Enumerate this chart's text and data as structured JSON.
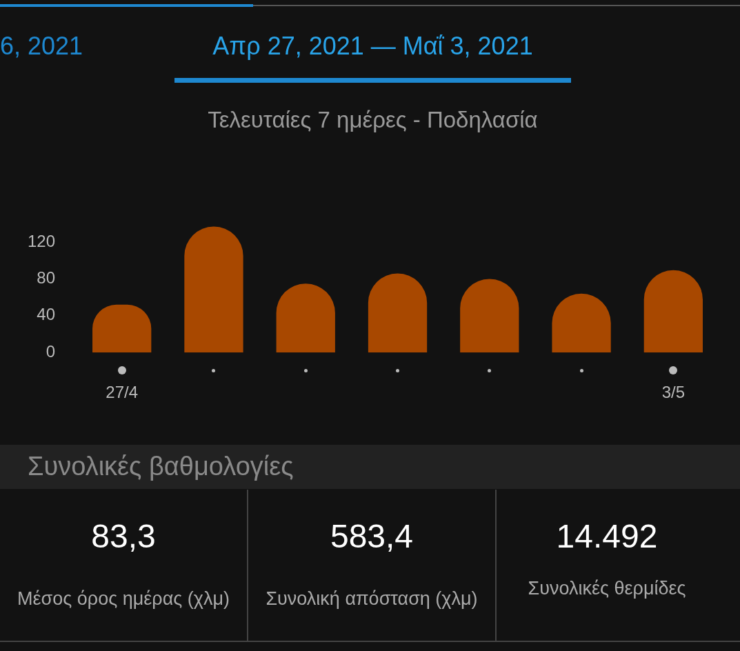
{
  "chart_data": {
    "type": "bar",
    "title": "Απρ 27, 2021 — Μαΐ 3, 2021",
    "subtitle": "Τελευταίες 7 ημέρες - Ποδηλασία",
    "categories": [
      "27/4",
      null,
      null,
      null,
      null,
      null,
      "3/5"
    ],
    "values": [
      52,
      137,
      75,
      86,
      80,
      64,
      89.5
    ],
    "color": "#a84800",
    "ylim": [
      0,
      140
    ],
    "yticks": [
      0,
      40,
      80,
      120
    ],
    "grid": false,
    "legend": false,
    "annotations": [
      "6, 2021",
      "Συνολικές βαθμολογίες",
      "83,3",
      "Μέσος όρος ημέρας (χλμ)",
      "583,4",
      "Συνολική απόσταση (χλμ)",
      "14.492",
      "Συνολικές θερμίδες"
    ]
  }
}
